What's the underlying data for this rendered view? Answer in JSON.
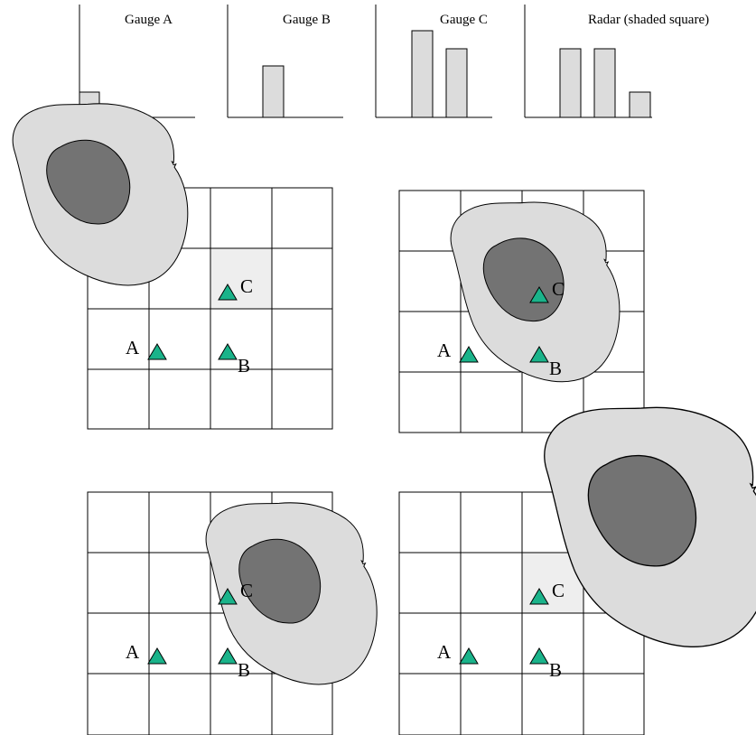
{
  "colors": {
    "background": "#ffffff",
    "line": "#000000",
    "bar_fill": "#dcdcdc",
    "cloud_outer": "#dcdcdc",
    "cloud_core": "#737373",
    "shaded_cell": "#eeeeee",
    "gauge_marker": "#1ab38a"
  },
  "icons": {
    "gauge_marker": "green-triangle-icon",
    "cloud": "storm-cloud-shape"
  },
  "panels": [
    {
      "title": "Gauge A"
    },
    {
      "title": "Gauge B"
    },
    {
      "title": "Gauge C"
    },
    {
      "title": "Radar (shaded square)"
    }
  ],
  "gauge_labels": {
    "a": "A",
    "b": "B",
    "c": "C"
  }
}
